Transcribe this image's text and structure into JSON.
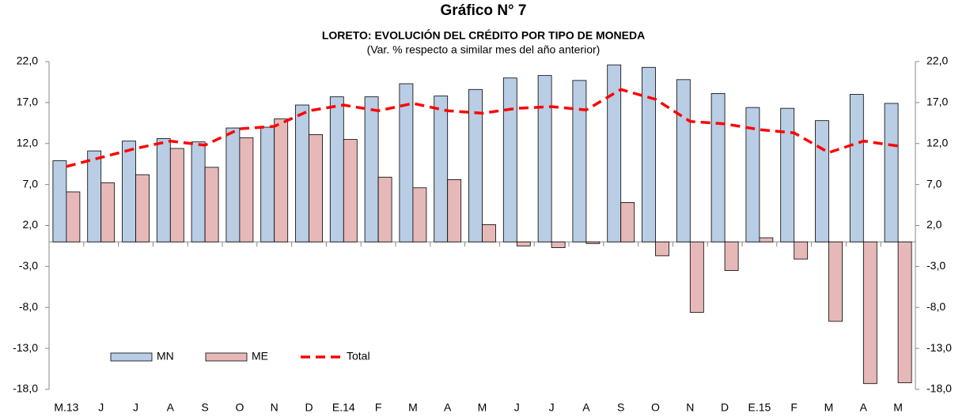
{
  "chart_data": {
    "type": "bar",
    "title": "Gráfico N° 7",
    "subtitle": "LORETO: EVOLUCIÓN DEL CRÉDITO POR TIPO DE MONEDA",
    "caption": "(Var. % respecto a similar mes del año anterior)",
    "categories": [
      "M.13",
      "J",
      "J",
      "A",
      "S",
      "O",
      "N",
      "D",
      "E.14",
      "F",
      "M",
      "A",
      "M",
      "J",
      "J",
      "A",
      "S",
      "O",
      "N",
      "D",
      "E.15",
      "F",
      "M",
      "A",
      "M"
    ],
    "series": [
      {
        "name": "MN",
        "type": "bar",
        "color": "#b9cde5",
        "values": [
          9.9,
          11.1,
          12.3,
          12.6,
          12.2,
          13.9,
          14.0,
          16.7,
          17.7,
          17.7,
          19.3,
          17.8,
          18.6,
          20.0,
          20.3,
          19.7,
          21.6,
          21.3,
          19.8,
          18.1,
          16.4,
          16.3,
          14.8,
          18.0,
          16.9
        ]
      },
      {
        "name": "ME",
        "type": "bar",
        "color": "#e6b9b8",
        "values": [
          6.1,
          7.2,
          8.2,
          11.4,
          9.1,
          12.7,
          15.0,
          13.1,
          12.5,
          7.9,
          6.6,
          7.6,
          2.1,
          -0.5,
          -0.7,
          -0.2,
          4.8,
          -1.7,
          -8.6,
          -3.5,
          0.5,
          -2.1,
          -9.7,
          -17.3,
          -17.2
        ]
      },
      {
        "name": "Total",
        "type": "line",
        "color": "#ff0000",
        "values": [
          9.2,
          10.3,
          11.4,
          12.3,
          11.8,
          13.8,
          14.1,
          16.0,
          16.7,
          16.0,
          16.9,
          16.0,
          15.7,
          16.3,
          16.5,
          16.1,
          18.6,
          17.4,
          14.7,
          14.4,
          13.7,
          13.3,
          10.9,
          12.3,
          11.7
        ]
      }
    ],
    "ylim": [
      -18,
      22
    ],
    "yticks": [
      {
        "value": -18,
        "label": "-18,0"
      },
      {
        "value": -13,
        "label": "-13,0"
      },
      {
        "value": -8,
        "label": "-8,0"
      },
      {
        "value": -3,
        "label": "-3,0"
      },
      {
        "value": 2,
        "label": "2,0"
      },
      {
        "value": 7,
        "label": "7,0"
      },
      {
        "value": 12,
        "label": "12,0"
      },
      {
        "value": 17,
        "label": "17,0"
      },
      {
        "value": 22,
        "label": "22,0"
      }
    ],
    "y2lim": [
      -18,
      22
    ],
    "y2ticks": [
      {
        "value": -18,
        "label": "-18,0"
      },
      {
        "value": -13,
        "label": "-13,0"
      },
      {
        "value": -8,
        "label": "-8,0"
      },
      {
        "value": -3,
        "label": "-3,0"
      },
      {
        "value": 2,
        "label": "2,0"
      },
      {
        "value": 7,
        "label": "7,0"
      },
      {
        "value": 12,
        "label": "12,0"
      },
      {
        "value": 17,
        "label": "17,0"
      },
      {
        "value": 22,
        "label": "22,0"
      }
    ],
    "grid": false,
    "legend": "lower left"
  }
}
